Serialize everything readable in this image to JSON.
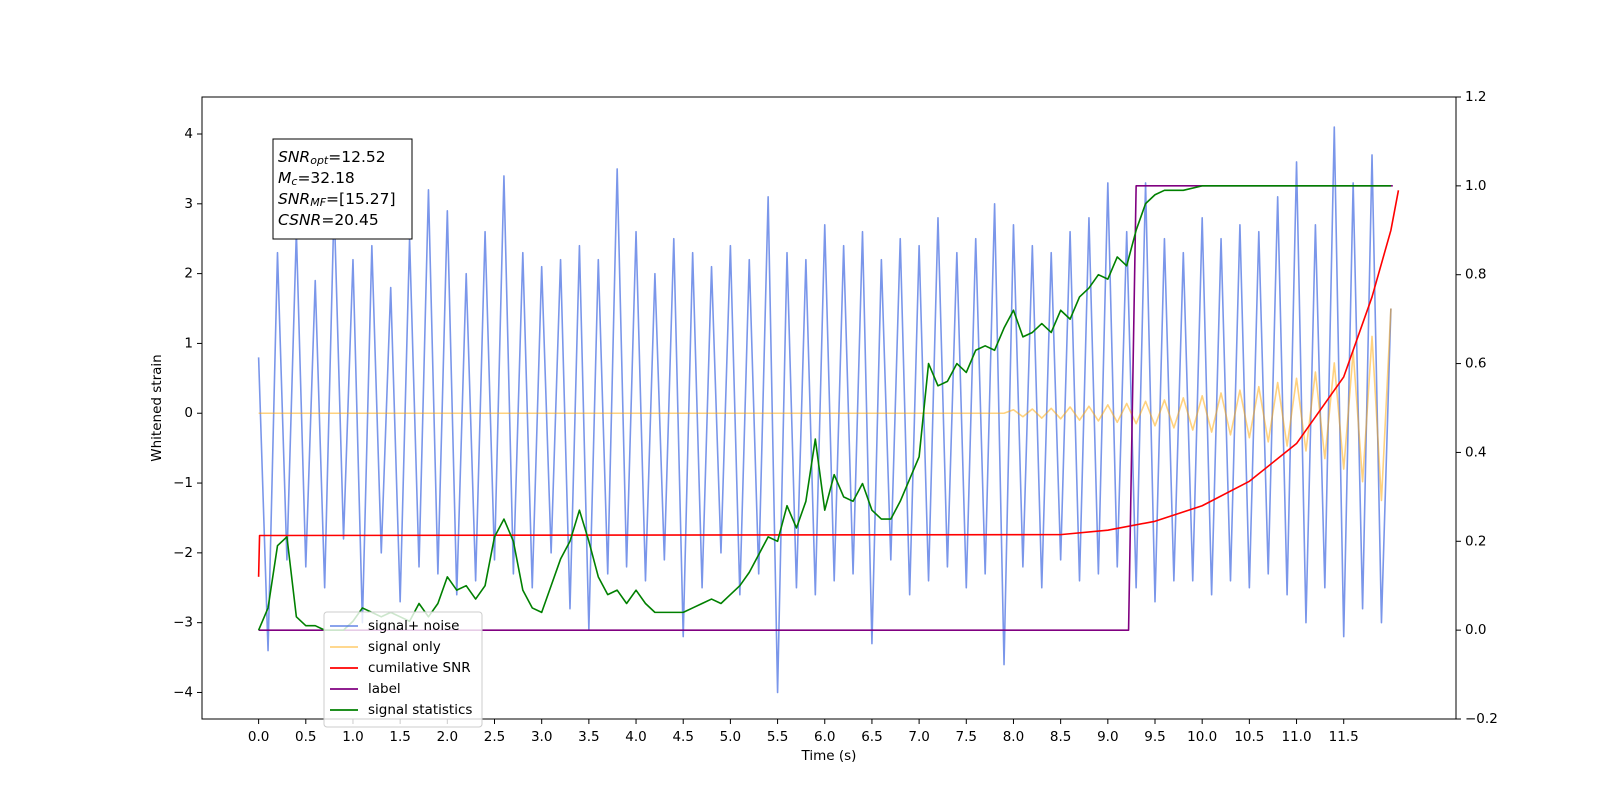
{
  "chart_data": {
    "type": "line",
    "xlabel": "Time (s)",
    "ylabel": "Whitened strain",
    "xlim": [
      -0.6,
      12.69
    ],
    "ylim": [
      -4.38,
      4.53
    ],
    "y2lim": [
      -0.2,
      1.2
    ],
    "xticks": [
      {
        "value": 0,
        "label": "0.0"
      },
      0.5,
      {
        "value": 1,
        "label": "1.0"
      },
      1.5,
      {
        "value": 2,
        "label": "2.0"
      },
      2.5,
      {
        "value": 3,
        "label": "3.0"
      },
      3.5,
      {
        "value": 4,
        "label": "4.0"
      },
      4.5,
      {
        "value": 5,
        "label": "5.0"
      },
      5.5,
      {
        "value": 6,
        "label": "6.0"
      },
      6.5,
      {
        "value": 7,
        "label": "7.0"
      },
      7.5,
      {
        "value": 8,
        "label": "8.0"
      },
      8.5,
      {
        "value": 9,
        "label": "9.0"
      },
      9.5,
      {
        "value": 10,
        "label": "10.0"
      },
      10.5,
      {
        "value": 11,
        "label": "11.0"
      },
      11.5
    ],
    "yticks": [
      {
        "value": -4,
        "label": "−4"
      },
      {
        "value": -3,
        "label": "−3"
      },
      {
        "value": -2,
        "label": "−2"
      },
      {
        "value": -1,
        "label": "−1"
      },
      0,
      1,
      2,
      3,
      4
    ],
    "y2ticks": [
      {
        "value": -0.2,
        "label": "−0.2"
      },
      {
        "value": 0,
        "label": "0.0"
      },
      0.2,
      0.4,
      0.6,
      0.8,
      {
        "value": 1,
        "label": "1.0"
      },
      1.2
    ],
    "legend": "lower left",
    "annotation": {
      "lines": [
        {
          "symbol": "SNR",
          "sub": "opt",
          "text": "=12.52"
        },
        {
          "symbol": "M",
          "sub": "c",
          "text": "=32.18"
        },
        {
          "symbol": "SNR",
          "sub": "MF",
          "text": "=[15.27]"
        },
        {
          "symbol": "CSNR",
          "text": "=20.45"
        }
      ]
    },
    "series": [
      {
        "name": "signal+ noise",
        "color": "royalblue",
        "alpha": 0.7,
        "x": [
          0,
          0.1,
          0.2,
          0.3,
          0.4,
          0.5,
          0.6,
          0.7,
          0.8,
          0.9,
          1,
          1.1,
          1.2,
          1.3,
          1.4,
          1.5,
          1.6,
          1.7,
          1.8,
          1.9,
          2,
          2.1,
          2.2,
          2.3,
          2.4,
          2.5,
          2.6,
          2.7,
          2.8,
          2.9,
          3,
          3.1,
          3.2,
          3.3,
          3.4,
          3.5,
          3.6,
          3.7,
          3.8,
          3.9,
          4,
          4.1,
          4.2,
          4.3,
          4.4,
          4.5,
          4.6,
          4.7,
          4.8,
          4.9,
          5,
          5.1,
          5.2,
          5.3,
          5.4,
          5.5,
          5.6,
          5.7,
          5.8,
          5.9,
          6,
          6.1,
          6.2,
          6.3,
          6.4,
          6.5,
          6.6,
          6.7,
          6.8,
          6.9,
          7,
          7.1,
          7.2,
          7.3,
          7.4,
          7.5,
          7.6,
          7.7,
          7.8,
          7.9,
          8,
          8.1,
          8.2,
          8.3,
          8.4,
          8.5,
          8.6,
          8.7,
          8.8,
          8.9,
          9,
          9.1,
          9.2,
          9.3,
          9.4,
          9.5,
          9.6,
          9.7,
          9.8,
          9.9,
          10,
          10.1,
          10.2,
          10.3,
          10.4,
          10.5,
          10.6,
          10.7,
          10.8,
          10.9,
          11,
          11.1,
          11.2,
          11.3,
          11.4,
          11.5,
          11.6,
          11.7,
          11.8,
          11.9,
          12
        ],
        "values": [
          0.8,
          -3.4,
          2.3,
          -2.1,
          2.6,
          -2.2,
          1.9,
          -2.5,
          3.0,
          -1.8,
          2.2,
          -3.0,
          2.4,
          -2.0,
          1.8,
          -2.7,
          2.5,
          -2.2,
          3.2,
          -2.3,
          2.9,
          -2.6,
          2.0,
          -2.4,
          2.6,
          -2.1,
          3.4,
          -2.3,
          2.3,
          -2.5,
          2.1,
          -2.0,
          2.2,
          -2.8,
          2.4,
          -3.1,
          2.2,
          -2.3,
          3.5,
          -2.2,
          2.6,
          -2.4,
          2.0,
          -2.1,
          2.5,
          -3.2,
          2.3,
          -2.5,
          2.1,
          -2.0,
          2.4,
          -2.6,
          2.2,
          -2.3,
          3.1,
          -4.0,
          2.3,
          -2.5,
          2.2,
          -2.6,
          2.7,
          -2.4,
          2.4,
          -2.3,
          2.6,
          -3.3,
          2.2,
          -2.1,
          2.5,
          -2.6,
          2.4,
          -2.4,
          2.8,
          -2.2,
          2.3,
          -2.5,
          2.5,
          -2.3,
          3.0,
          -3.6,
          2.7,
          -2.2,
          2.4,
          -2.5,
          2.3,
          -2.1,
          2.6,
          -2.4,
          2.8,
          -2.3,
          3.3,
          -2.2,
          2.6,
          -2.5,
          3.3,
          -2.7,
          2.5,
          -2.4,
          2.3,
          -2.4,
          2.8,
          -2.6,
          2.5,
          -2.4,
          2.7,
          -2.5,
          2.6,
          -2.3,
          3.1,
          -2.6,
          3.6,
          -3.0,
          2.7,
          -2.5,
          4.1,
          -3.2,
          3.3,
          -2.8,
          3.7,
          -3.0,
          1.5
        ]
      },
      {
        "name": "signal only",
        "color": "orange",
        "alpha": 0.5,
        "x": [
          0,
          7.9,
          8,
          8.1,
          8.2,
          8.3,
          8.4,
          8.5,
          8.6,
          8.7,
          8.8,
          8.9,
          9,
          9.1,
          9.2,
          9.3,
          9.4,
          9.5,
          9.6,
          9.7,
          9.8,
          9.9,
          10,
          10.1,
          10.2,
          10.3,
          10.4,
          10.5,
          10.6,
          10.7,
          10.8,
          10.9,
          11,
          11.1,
          11.2,
          11.3,
          11.4,
          11.5,
          11.6,
          11.7,
          11.8,
          11.9,
          12
        ],
        "values": [
          0,
          0,
          0.05,
          -0.05,
          0.06,
          -0.07,
          0.07,
          -0.08,
          0.09,
          -0.1,
          0.1,
          -0.11,
          0.12,
          -0.13,
          0.14,
          -0.15,
          0.17,
          -0.18,
          0.19,
          -0.21,
          0.22,
          -0.24,
          0.25,
          -0.27,
          0.29,
          -0.31,
          0.33,
          -0.35,
          0.38,
          -0.41,
          0.44,
          -0.47,
          0.5,
          -0.54,
          0.59,
          -0.65,
          0.72,
          -0.8,
          0.88,
          -0.98,
          1.1,
          -1.25,
          1.5
        ]
      },
      {
        "name": "cumilative SNR",
        "color": "red",
        "alpha": 1,
        "axis": "y2",
        "x": [
          0,
          0.01,
          8.5,
          9,
          9.5,
          10,
          10.5,
          11,
          11.5,
          11.8,
          12,
          12.08
        ],
        "values": [
          0.12,
          0.213,
          0.215,
          0.225,
          0.245,
          0.28,
          0.335,
          0.42,
          0.57,
          0.75,
          0.9,
          0.99
        ]
      },
      {
        "name": "label",
        "color": "purple",
        "alpha": 1,
        "axis": "y2",
        "x": [
          0,
          9.22,
          9.3,
          12.02
        ],
        "values": [
          0,
          0,
          1,
          1
        ]
      },
      {
        "name": "signal statistics",
        "color": "green",
        "alpha": 1,
        "axis": "y2",
        "x": [
          0,
          0.1,
          0.2,
          0.3,
          0.4,
          0.5,
          0.6,
          0.7,
          0.8,
          0.9,
          1,
          1.1,
          1.2,
          1.3,
          1.4,
          1.5,
          1.6,
          1.7,
          1.8,
          1.9,
          2,
          2.1,
          2.2,
          2.3,
          2.4,
          2.5,
          2.6,
          2.7,
          2.8,
          2.9,
          3,
          3.1,
          3.2,
          3.3,
          3.4,
          3.5,
          3.6,
          3.7,
          3.8,
          3.9,
          4,
          4.1,
          4.2,
          4.3,
          4.4,
          4.5,
          4.6,
          4.7,
          4.8,
          4.9,
          5,
          5.1,
          5.2,
          5.3,
          5.4,
          5.5,
          5.6,
          5.7,
          5.8,
          5.9,
          6,
          6.1,
          6.2,
          6.3,
          6.4,
          6.5,
          6.6,
          6.7,
          6.8,
          6.9,
          7,
          7.1,
          7.2,
          7.3,
          7.4,
          7.5,
          7.6,
          7.7,
          7.8,
          7.9,
          8,
          8.1,
          8.2,
          8.3,
          8.4,
          8.5,
          8.6,
          8.7,
          8.8,
          8.9,
          9,
          9.1,
          9.2,
          9.3,
          9.4,
          9.5,
          9.6,
          9.8,
          10,
          11,
          12
        ],
        "values": [
          0,
          0.05,
          0.19,
          0.21,
          0.03,
          0.01,
          0.01,
          0,
          0,
          0,
          0.02,
          0.05,
          0.04,
          0.03,
          0.04,
          0.03,
          0.02,
          0.06,
          0.03,
          0.06,
          0.12,
          0.09,
          0.1,
          0.07,
          0.1,
          0.21,
          0.25,
          0.2,
          0.09,
          0.05,
          0.04,
          0.1,
          0.16,
          0.2,
          0.27,
          0.2,
          0.12,
          0.08,
          0.09,
          0.06,
          0.09,
          0.06,
          0.04,
          0.04,
          0.04,
          0.04,
          0.05,
          0.06,
          0.07,
          0.06,
          0.08,
          0.1,
          0.13,
          0.17,
          0.21,
          0.2,
          0.28,
          0.23,
          0.29,
          0.43,
          0.27,
          0.35,
          0.3,
          0.29,
          0.33,
          0.27,
          0.25,
          0.25,
          0.29,
          0.34,
          0.39,
          0.6,
          0.55,
          0.56,
          0.6,
          0.58,
          0.63,
          0.64,
          0.63,
          0.68,
          0.72,
          0.66,
          0.67,
          0.69,
          0.67,
          0.72,
          0.7,
          0.75,
          0.77,
          0.8,
          0.79,
          0.84,
          0.82,
          0.9,
          0.96,
          0.98,
          0.99,
          0.99,
          1,
          1,
          1
        ]
      }
    ]
  }
}
